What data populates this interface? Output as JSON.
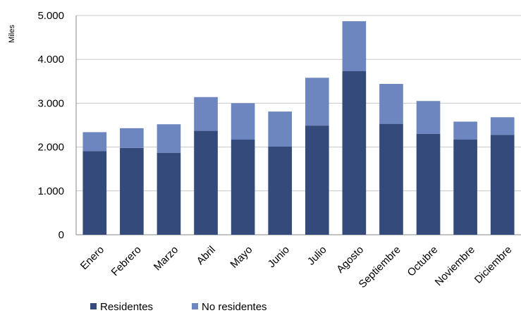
{
  "chart_data": {
    "type": "bar",
    "stacked": true,
    "ylabel": "Miles",
    "ylim": [
      0,
      5000
    ],
    "yticks": [
      0,
      1000,
      2000,
      3000,
      4000,
      5000
    ],
    "ytick_labels": [
      "0",
      "1.000",
      "2.000",
      "3.000",
      "4.000",
      "5.000"
    ],
    "categories": [
      "Enero",
      "Febrero",
      "Marzo",
      "Abril",
      "Mayo",
      "Junio",
      "Julio",
      "Agosto",
      "Septiembre",
      "Octubre",
      "Noviembre",
      "Diciembre"
    ],
    "series": [
      {
        "name": "Residentes",
        "color": "#344a7b",
        "values": [
          1910,
          1980,
          1870,
          2370,
          2170,
          2010,
          2490,
          3730,
          2530,
          2300,
          2170,
          2280
        ]
      },
      {
        "name": "No residentes",
        "color": "#6d86c0",
        "values": [
          430,
          450,
          650,
          770,
          830,
          800,
          1090,
          1140,
          910,
          750,
          410,
          400
        ]
      }
    ],
    "grid": true,
    "legend": "bottom"
  }
}
